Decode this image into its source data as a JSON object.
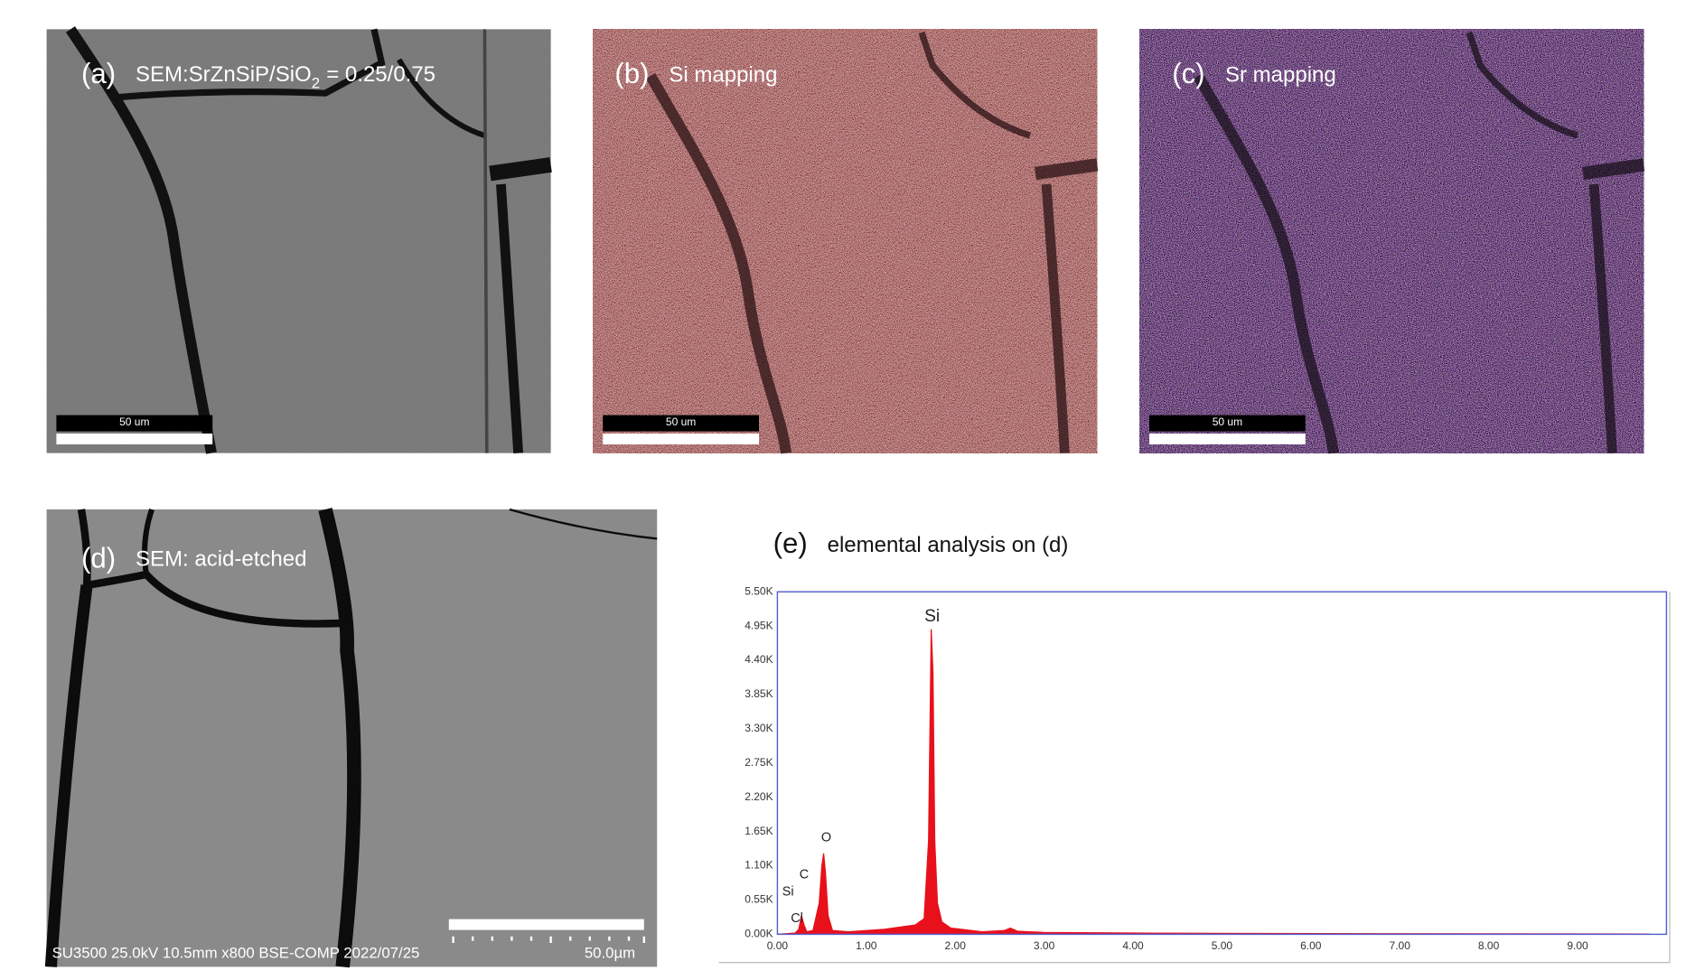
{
  "panels": [
    {
      "label": "(a)",
      "text": "SEM:SrZnSiP/SiO",
      "subscript": "2",
      "text_after": "= 0.25/0.75",
      "scale_bar": "50 um"
    },
    {
      "label": "(b)",
      "text": "Si mapping",
      "scale_bar": "50 um"
    },
    {
      "label": "(c)",
      "text": "Sr mapping",
      "scale_bar": "50 um"
    },
    {
      "label": "(d)",
      "text": "SEM: acid-etched",
      "footer": "SU3500 25.0kV 10.5mm x800 BSE-COMP 2022/07/25",
      "scale_bar": "50.0µm"
    }
  ],
  "chart_data": {
    "type": "area",
    "label": "(e)",
    "title": "elemental analysis on (d)",
    "color": "#e8101a",
    "x": [
      0,
      0.1,
      0.2,
      0.24,
      0.27,
      0.3,
      0.33,
      0.4,
      0.47,
      0.5,
      0.52,
      0.54,
      0.57,
      0.62,
      0.8,
      1.2,
      1.55,
      1.65,
      1.7,
      1.73,
      1.75,
      1.77,
      1.8,
      1.85,
      1.95,
      2.3,
      2.55,
      2.62,
      2.7,
      3.0,
      4.0,
      5.0,
      7.0,
      9.8
    ],
    "values": [
      0,
      10,
      20,
      80,
      300,
      150,
      40,
      60,
      500,
      1100,
      1300,
      1000,
      300,
      60,
      40,
      80,
      150,
      250,
      1500,
      4900,
      4200,
      1500,
      500,
      200,
      100,
      40,
      60,
      100,
      50,
      30,
      20,
      15,
      10,
      5
    ],
    "xlim": [
      0,
      10
    ],
    "ylim": [
      0,
      5500
    ],
    "xticks": [
      {
        "value": 0,
        "label": "0.00"
      },
      {
        "value": 1,
        "label": "1.00"
      },
      {
        "value": 2,
        "label": "2.00"
      },
      {
        "value": 3,
        "label": "3.00"
      },
      {
        "value": 4,
        "label": "4.00"
      },
      {
        "value": 5,
        "label": "5.00"
      },
      {
        "value": 6,
        "label": "6.00"
      },
      {
        "value": 7,
        "label": "7.00"
      },
      {
        "value": 8,
        "label": "8.00"
      },
      {
        "value": 9,
        "label": "9.00"
      }
    ],
    "yticks": [
      {
        "value": 0,
        "label": "0.00K"
      },
      {
        "value": 550,
        "label": "0.55K"
      },
      {
        "value": 1100,
        "label": "1.10K"
      },
      {
        "value": 1650,
        "label": "1.65K"
      },
      {
        "value": 2200,
        "label": "2.20K"
      },
      {
        "value": 2750,
        "label": "2.75K"
      },
      {
        "value": 3300,
        "label": "3.30K"
      },
      {
        "value": 3850,
        "label": "3.85K"
      },
      {
        "value": 4400,
        "label": "4.40K"
      },
      {
        "value": 4950,
        "label": "4.95K"
      },
      {
        "value": 5500,
        "label": "5.50K"
      }
    ],
    "annotations": [
      {
        "text": "Si",
        "x": 1.74,
        "y": 5100
      },
      {
        "text": "O",
        "x": 0.55,
        "y": 1550
      },
      {
        "text": "C",
        "x": 0.3,
        "y": 950
      },
      {
        "text": "Si",
        "x": 0.12,
        "y": 680
      },
      {
        "text": "Cl",
        "x": 0.22,
        "y": 250
      }
    ]
  }
}
